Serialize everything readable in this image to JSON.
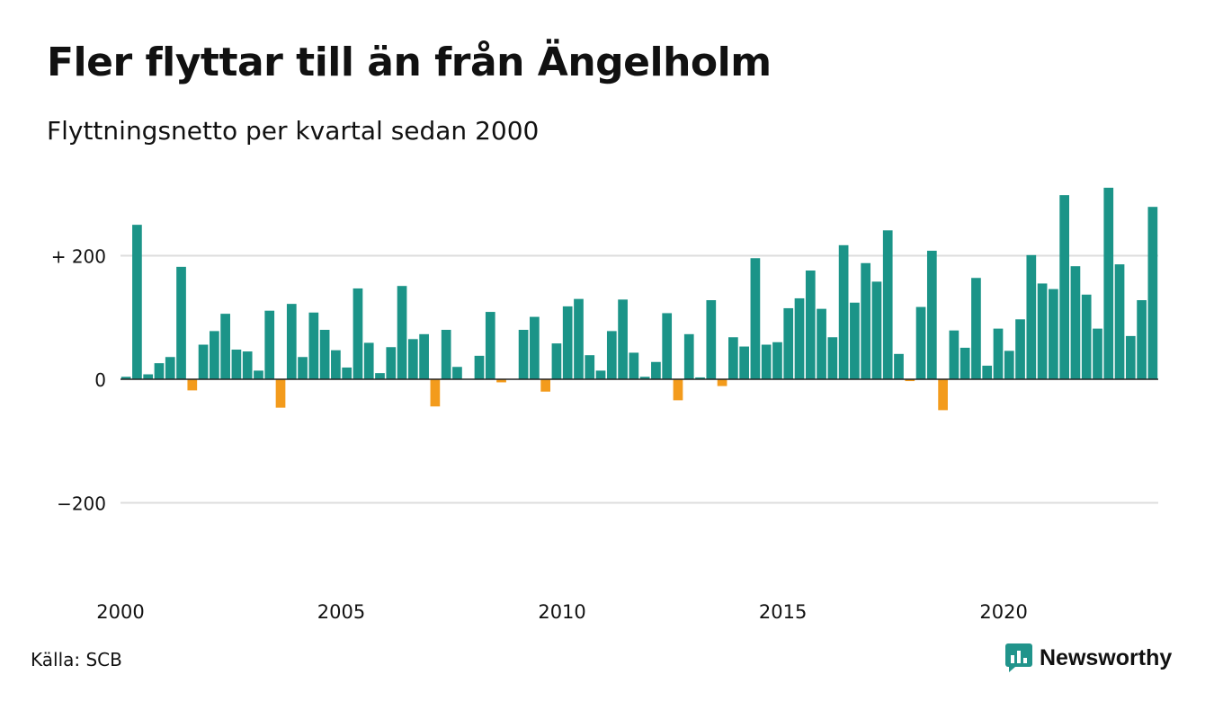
{
  "title": "Fler flyttar till än från Ängelholm",
  "subtitle": "Flyttningsnetto per kvartal sedan 2000",
  "source": "Källa: SCB",
  "brand": {
    "name": "Newsworthy",
    "icon": "newsworthy-logo-icon",
    "color": "#21948b"
  },
  "colors": {
    "positive": "#1b9488",
    "negative": "#f39b1c",
    "grid": "#dddddd",
    "baseline": "#222222"
  },
  "chart_data": {
    "type": "bar",
    "title": "Fler flyttar till än från Ängelholm",
    "subtitle": "Flyttningsnetto per kvartal sedan 2000",
    "xlabel": "",
    "ylabel": "",
    "x_start_year": 2000,
    "periods_per_year": 4,
    "ylim": [
      -300,
      320
    ],
    "yticks": [
      {
        "value": 200,
        "label": "+ 200"
      },
      {
        "value": 0,
        "label": "0"
      },
      {
        "value": -200,
        "label": "−200"
      }
    ],
    "xticks": [
      {
        "year": 2000,
        "label": "2000"
      },
      {
        "year": 2005,
        "label": "2005"
      },
      {
        "year": 2010,
        "label": "2010"
      },
      {
        "year": 2015,
        "label": "2015"
      },
      {
        "year": 2020,
        "label": "2020"
      }
    ],
    "grid": true,
    "legend": "none",
    "values": [
      4,
      250,
      8,
      26,
      36,
      182,
      -18,
      56,
      78,
      106,
      48,
      45,
      14,
      111,
      -46,
      122,
      36,
      108,
      80,
      47,
      19,
      147,
      59,
      10,
      52,
      151,
      65,
      73,
      -44,
      80,
      20,
      0,
      38,
      109,
      -5,
      0,
      80,
      101,
      -20,
      58,
      118,
      130,
      39,
      14,
      78,
      129,
      43,
      4,
      28,
      107,
      -34,
      73,
      3,
      128,
      -11,
      68,
      53,
      196,
      56,
      60,
      115,
      131,
      176,
      114,
      68,
      217,
      124,
      188,
      158,
      241,
      41,
      -3,
      117,
      208,
      -50,
      79,
      51,
      164,
      22,
      82,
      46,
      97,
      201,
      155,
      146,
      298,
      183,
      137,
      82,
      310,
      186,
      70,
      128,
      279
    ]
  }
}
